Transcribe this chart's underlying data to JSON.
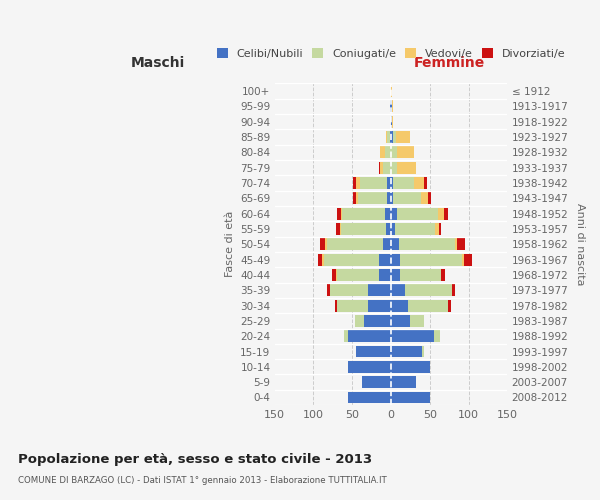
{
  "age_groups": [
    "0-4",
    "5-9",
    "10-14",
    "15-19",
    "20-24",
    "25-29",
    "30-34",
    "35-39",
    "40-44",
    "45-49",
    "50-54",
    "55-59",
    "60-64",
    "65-69",
    "70-74",
    "75-79",
    "80-84",
    "85-89",
    "90-94",
    "95-99",
    "100+"
  ],
  "birth_years": [
    "2008-2012",
    "2003-2007",
    "1998-2002",
    "1993-1997",
    "1988-1992",
    "1983-1987",
    "1978-1982",
    "1973-1977",
    "1968-1972",
    "1963-1967",
    "1958-1962",
    "1953-1957",
    "1948-1952",
    "1943-1947",
    "1938-1942",
    "1933-1937",
    "1928-1932",
    "1923-1927",
    "1918-1922",
    "1913-1917",
    "≤ 1912"
  ],
  "males": {
    "celibi": [
      55,
      38,
      55,
      45,
      55,
      35,
      30,
      30,
      15,
      15,
      10,
      6,
      8,
      5,
      5,
      0,
      0,
      1,
      0,
      1,
      0
    ],
    "coniugati": [
      0,
      0,
      0,
      0,
      5,
      12,
      40,
      48,
      55,
      72,
      72,
      58,
      55,
      38,
      35,
      10,
      8,
      4,
      0,
      0,
      0
    ],
    "vedovi": [
      0,
      0,
      0,
      0,
      0,
      0,
      0,
      0,
      1,
      2,
      3,
      2,
      2,
      2,
      5,
      4,
      6,
      2,
      0,
      0,
      0
    ],
    "divorziati": [
      0,
      0,
      0,
      0,
      0,
      0,
      2,
      5,
      5,
      5,
      6,
      5,
      5,
      4,
      4,
      2,
      0,
      0,
      0,
      0,
      0
    ]
  },
  "females": {
    "nubili": [
      50,
      32,
      50,
      40,
      55,
      25,
      22,
      18,
      12,
      12,
      10,
      5,
      8,
      3,
      2,
      0,
      0,
      2,
      1,
      1,
      0
    ],
    "coniugate": [
      0,
      0,
      0,
      2,
      8,
      18,
      52,
      60,
      52,
      80,
      72,
      52,
      52,
      35,
      28,
      8,
      8,
      5,
      0,
      0,
      0
    ],
    "vedove": [
      0,
      0,
      0,
      0,
      0,
      0,
      0,
      0,
      1,
      2,
      3,
      5,
      8,
      10,
      12,
      24,
      22,
      18,
      2,
      1,
      1
    ],
    "divorziate": [
      0,
      0,
      0,
      0,
      0,
      0,
      3,
      5,
      4,
      10,
      10,
      3,
      5,
      3,
      5,
      0,
      0,
      0,
      0,
      0,
      0
    ]
  },
  "colors": {
    "celibi_nubili": "#4472C4",
    "coniugati": "#c5d9a0",
    "vedovi": "#f5c96a",
    "divorziati": "#cc1111"
  },
  "title": "Popolazione per età, sesso e stato civile - 2013",
  "subtitle": "COMUNE DI BARZAGO (LC) - Dati ISTAT 1° gennaio 2013 - Elaborazione TUTTITALIA.IT",
  "xlabel_left": "Maschi",
  "xlabel_right": "Femmine",
  "ylabel_left": "Fasce di età",
  "ylabel_right": "Anni di nascita",
  "xlim": 150,
  "legend_labels": [
    "Celibi/Nubili",
    "Coniugati/e",
    "Vedovi/e",
    "Divorziati/e"
  ],
  "background_color": "#f5f5f5",
  "maschi_color": "#333333",
  "femmine_color": "#cc2222"
}
